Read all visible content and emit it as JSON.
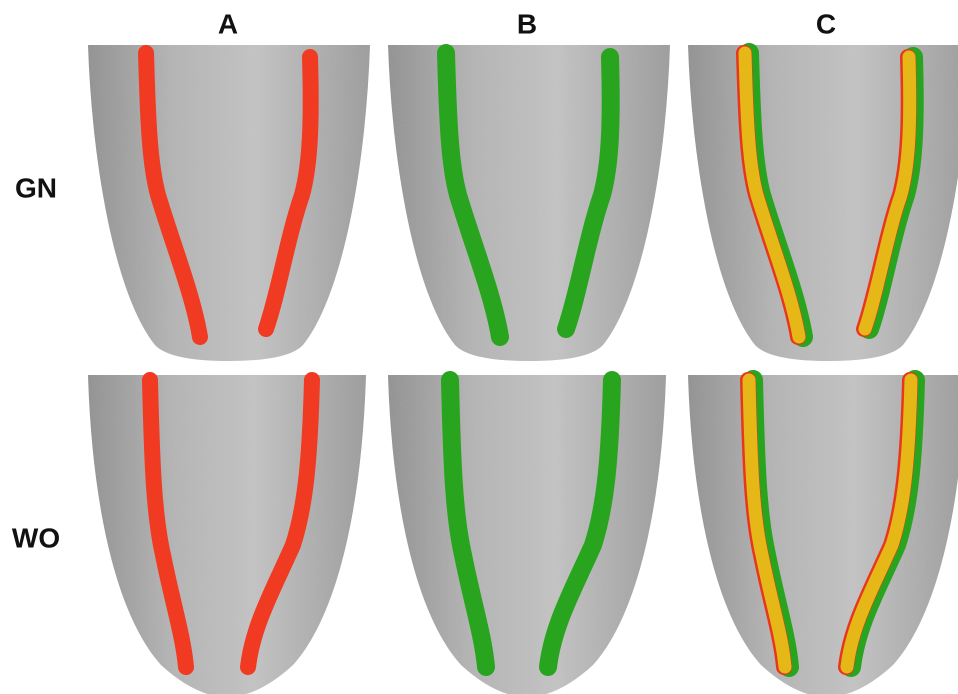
{
  "columns": [
    "A",
    "B",
    "C"
  ],
  "rows": [
    "GN",
    "WO"
  ]
}
